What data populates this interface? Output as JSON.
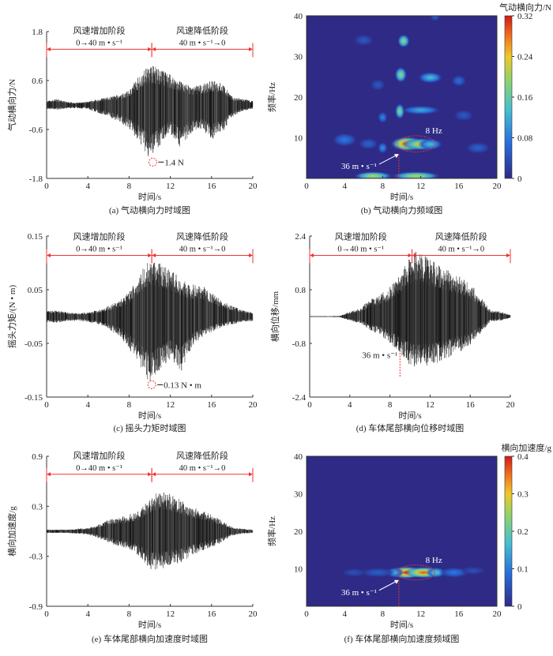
{
  "chart_data": [
    {
      "id": "a",
      "type": "line",
      "caption": "(a)   气动横向力时域图",
      "xlabel": "时间/s",
      "ylabel": "气动横向力/N",
      "xlim": [
        0,
        20
      ],
      "xticks": [
        "0",
        "4",
        "8",
        "12",
        "16",
        "20"
      ],
      "ylim": [
        -1.8,
        1.8
      ],
      "yticks": [
        "-1.8",
        "-0.6",
        "0.6",
        "1.8"
      ],
      "phases": [
        {
          "label": "风速增加阶段",
          "sub": "0→40 m • s⁻¹",
          "from": 0,
          "to": 10.2
        },
        {
          "label": "风速降低阶段",
          "sub": "40 m • s⁻¹→0",
          "from": 10.2,
          "to": 20
        }
      ],
      "annotation": {
        "text": "1.4 N",
        "t": 10.3,
        "y": -1.4,
        "style": "circle"
      },
      "envelope": {
        "t": [
          0,
          1,
          2,
          3,
          4,
          5,
          6,
          7,
          8,
          9,
          10,
          11,
          12,
          13,
          14,
          15,
          16,
          17,
          18,
          19,
          20
        ],
        "upper": [
          0.1,
          0.15,
          0.08,
          0.06,
          0.08,
          0.15,
          0.2,
          0.25,
          0.35,
          0.75,
          1.0,
          0.9,
          0.75,
          0.6,
          0.45,
          0.5,
          0.6,
          0.55,
          0.2,
          0.15,
          0.1
        ],
        "lower": [
          -0.1,
          -0.12,
          -0.08,
          -0.08,
          -0.1,
          -0.2,
          -0.3,
          -0.4,
          -0.6,
          -0.9,
          -1.35,
          -1.0,
          -0.7,
          -1.05,
          -0.7,
          -0.6,
          -0.85,
          -0.7,
          -0.3,
          -0.15,
          -0.1
        ]
      }
    },
    {
      "id": "b",
      "type": "heatmap",
      "caption": "(b)   气动横向力频域图",
      "xlabel": "时间/s",
      "ylabel": "频率/Hz",
      "xlim": [
        0,
        20
      ],
      "xticks": [
        "0",
        "4",
        "8",
        "12",
        "16",
        "20"
      ],
      "ylim": [
        0,
        40
      ],
      "yticks": [
        "10",
        "20",
        "30",
        "40"
      ],
      "colorbar": {
        "label": "气动横向力/N",
        "range": [
          0,
          0.32
        ],
        "ticks": [
          "0",
          "0.08",
          "0.16",
          "0.24",
          "0.32"
        ]
      },
      "annotations": [
        {
          "text": "8 Hz",
          "t": 11.5,
          "f": 8.5,
          "style": "ellipse"
        },
        {
          "text": "36 m • s⁻¹",
          "t": 9.7,
          "f": 6,
          "style": "arrow"
        }
      ],
      "peaks": [
        {
          "t": 10.6,
          "f": 8.5,
          "v": 0.32,
          "wt": 1.4,
          "wf": 1.3
        },
        {
          "t": 12.0,
          "f": 8.4,
          "v": 0.24,
          "wt": 1.6,
          "wf": 1.1
        },
        {
          "t": 13.0,
          "f": 8.4,
          "v": 0.14,
          "wt": 1.0,
          "wf": 1.0
        },
        {
          "t": 9.8,
          "f": 16.5,
          "v": 0.2,
          "wt": 0.4,
          "wf": 1.4
        },
        {
          "t": 12.0,
          "f": 16.8,
          "v": 0.12,
          "wt": 1.6,
          "wf": 0.8
        },
        {
          "t": 9.9,
          "f": 25.5,
          "v": 0.2,
          "wt": 0.5,
          "wf": 1.4
        },
        {
          "t": 13.0,
          "f": 24.8,
          "v": 0.14,
          "wt": 1.0,
          "wf": 1.0
        },
        {
          "t": 10.2,
          "f": 33.8,
          "v": 0.2,
          "wt": 0.5,
          "wf": 1.2
        },
        {
          "t": 7.0,
          "f": 0.6,
          "v": 0.22,
          "wt": 1.6,
          "wf": 0.8
        },
        {
          "t": 11.5,
          "f": 0.6,
          "v": 0.22,
          "wt": 2.0,
          "wf": 0.8
        },
        {
          "t": 8.0,
          "f": 7.5,
          "v": 0.1,
          "wt": 0.4,
          "wf": 1.0
        },
        {
          "t": 8.0,
          "f": 15.0,
          "v": 0.09,
          "wt": 0.4,
          "wf": 1.0
        },
        {
          "t": 4.0,
          "f": 9.5,
          "v": 0.08,
          "wt": 1.0,
          "wf": 1.2
        },
        {
          "t": 6.5,
          "f": 8.5,
          "v": 0.06,
          "wt": 0.8,
          "wf": 1.0
        },
        {
          "t": 16.0,
          "f": 24.0,
          "v": 0.07,
          "wt": 0.6,
          "wf": 1.0
        },
        {
          "t": 18.0,
          "f": 7.5,
          "v": 0.06,
          "wt": 1.0,
          "wf": 1.0
        },
        {
          "t": 16.5,
          "f": 15.5,
          "v": 0.05,
          "wt": 0.8,
          "wf": 1.0
        },
        {
          "t": 6.0,
          "f": 34.0,
          "v": 0.05,
          "wt": 0.8,
          "wf": 1.0
        },
        {
          "t": 7.5,
          "f": 23.0,
          "v": 0.05,
          "wt": 0.6,
          "wf": 1.0
        },
        {
          "t": 13.5,
          "f": 40.0,
          "v": 0.06,
          "wt": 0.4,
          "wf": 1.0
        }
      ]
    },
    {
      "id": "c",
      "type": "line",
      "caption": "(c)   摇头力矩时域图",
      "xlabel": "时间/s",
      "ylabel": "摇头力矩/(N • m)",
      "xlim": [
        0,
        20
      ],
      "xticks": [
        "0",
        "4",
        "8",
        "12",
        "16",
        "20"
      ],
      "ylim": [
        -0.15,
        0.15
      ],
      "yticks": [
        "-0.15",
        "-0.05",
        "0.05",
        "0.15"
      ],
      "phases": [
        {
          "label": "风速增加阶段",
          "sub": "0→40 m • s⁻¹",
          "from": 0,
          "to": 10.2
        },
        {
          "label": "风速降低阶段",
          "sub": "40 m • s⁻¹→0",
          "from": 10.2,
          "to": 20
        }
      ],
      "annotation": {
        "text": "0.13 N • m",
        "t": 10.2,
        "y": -0.127,
        "style": "circle"
      },
      "envelope": {
        "t": [
          0,
          1,
          2,
          3,
          4,
          5,
          6,
          7,
          8,
          9,
          10,
          11,
          12,
          13,
          14,
          15,
          16,
          17,
          18,
          19,
          20
        ],
        "upper": [
          0.01,
          0.012,
          0.008,
          0.006,
          0.008,
          0.012,
          0.02,
          0.03,
          0.045,
          0.08,
          0.11,
          0.1,
          0.09,
          0.07,
          0.06,
          0.06,
          0.045,
          0.03,
          0.02,
          0.012,
          0.008
        ],
        "lower": [
          -0.01,
          -0.012,
          -0.008,
          -0.008,
          -0.01,
          -0.015,
          -0.025,
          -0.035,
          -0.06,
          -0.09,
          -0.125,
          -0.1,
          -0.08,
          -0.105,
          -0.06,
          -0.04,
          -0.03,
          -0.02,
          -0.015,
          -0.01,
          -0.008
        ]
      }
    },
    {
      "id": "d",
      "type": "line",
      "caption": "(d)   车体尾部横向位移时域图",
      "xlabel": "时间/s",
      "ylabel": "横向位移/mm",
      "xlim": [
        0,
        20
      ],
      "xticks": [
        "0",
        "4",
        "8",
        "12",
        "16",
        "20"
      ],
      "ylim": [
        -2.4,
        2.4
      ],
      "yticks": [
        "-2.4",
        "-0.8",
        "0.8",
        "2.4"
      ],
      "phases": [
        {
          "label": "风速增加阶段",
          "sub": "0→40 m • s⁻¹",
          "from": 0,
          "to": 10.2
        },
        {
          "label": "风速降低阶段",
          "sub": "40 m • s⁻¹→0",
          "from": 10.2,
          "to": 20
        }
      ],
      "annotation": {
        "text": "36 m • s⁻¹",
        "t": 9.0,
        "y": -1.0,
        "style": "dashed"
      },
      "envelope": {
        "t": [
          0,
          1,
          2,
          3,
          4,
          5,
          6,
          7,
          8,
          9,
          10,
          10.5,
          11,
          12,
          13,
          14,
          15,
          16,
          17,
          18,
          19,
          20
        ],
        "upper": [
          0.01,
          0.01,
          0.01,
          0.02,
          0.15,
          0.25,
          0.5,
          0.65,
          0.9,
          1.3,
          1.75,
          1.95,
          1.9,
          1.7,
          1.5,
          1.35,
          1.2,
          1.0,
          0.6,
          0.2,
          0.15,
          0.05
        ],
        "lower": [
          -0.01,
          -0.01,
          -0.01,
          -0.02,
          -0.12,
          -0.2,
          -0.4,
          -0.55,
          -0.8,
          -1.1,
          -1.45,
          -1.5,
          -1.5,
          -1.45,
          -1.35,
          -1.2,
          -1.05,
          -0.9,
          -0.5,
          -0.15,
          -0.12,
          -0.05
        ]
      }
    },
    {
      "id": "e",
      "type": "line",
      "caption": "(e)   车体尾部横向加速度时域图",
      "xlabel": "时间/s",
      "ylabel": "横向加速度/g",
      "xlim": [
        0,
        20
      ],
      "xticks": [
        "0",
        "4",
        "8",
        "12",
        "16",
        "20"
      ],
      "ylim": [
        -0.9,
        0.9
      ],
      "yticks": [
        "-0.9",
        "-0.3",
        "0.3",
        "0.9"
      ],
      "phases": [
        {
          "label": "风速增加阶段",
          "sub": "0→40 m • s⁻¹",
          "from": 0,
          "to": 10.2
        },
        {
          "label": "风速降低阶段",
          "sub": "40 m • s⁻¹→0",
          "from": 10.2,
          "to": 20
        }
      ],
      "envelope": {
        "t": [
          0,
          1,
          2,
          3,
          4,
          5,
          6,
          7,
          8,
          9,
          10,
          11,
          12,
          13,
          14,
          15,
          16,
          17,
          18,
          19,
          20
        ],
        "upper": [
          0.02,
          0.02,
          0.02,
          0.03,
          0.04,
          0.08,
          0.14,
          0.17,
          0.2,
          0.25,
          0.4,
          0.5,
          0.45,
          0.38,
          0.3,
          0.26,
          0.2,
          0.13,
          0.05,
          0.03,
          0.02
        ],
        "lower": [
          -0.02,
          -0.02,
          -0.02,
          -0.03,
          -0.04,
          -0.08,
          -0.14,
          -0.18,
          -0.22,
          -0.3,
          -0.45,
          -0.47,
          -0.42,
          -0.38,
          -0.3,
          -0.24,
          -0.2,
          -0.13,
          -0.05,
          -0.03,
          -0.02
        ]
      }
    },
    {
      "id": "f",
      "type": "heatmap",
      "caption": "(f)   车体尾部横向加速度频域图",
      "xlabel": "时间/s",
      "ylabel": "频率/Hz",
      "xlim": [
        0,
        20
      ],
      "xticks": [
        "0",
        "4",
        "8",
        "12",
        "16",
        "20"
      ],
      "ylim": [
        0,
        40
      ],
      "yticks": [
        "10",
        "20",
        "30",
        "40"
      ],
      "colorbar": {
        "label": "横向加速度/g",
        "range": [
          0,
          0.4
        ],
        "ticks": [
          "0",
          "0.1",
          "0.2",
          "0.3",
          "0.4"
        ]
      },
      "annotations": [
        {
          "text": "8 Hz",
          "t": 11.5,
          "f": 9,
          "style": "ellipse"
        },
        {
          "text": "36 m • s⁻¹",
          "t": 9.7,
          "f": 7,
          "style": "arrow"
        }
      ],
      "peaks": [
        {
          "t": 10.5,
          "f": 9,
          "v": 0.4,
          "wt": 1.5,
          "wf": 1.2
        },
        {
          "t": 12.3,
          "f": 9,
          "v": 0.37,
          "wt": 1.6,
          "wf": 1.1
        },
        {
          "t": 13.6,
          "f": 9,
          "v": 0.2,
          "wt": 0.8,
          "wf": 1.0
        },
        {
          "t": 9.3,
          "f": 9,
          "v": 0.16,
          "wt": 0.7,
          "wf": 1.0
        },
        {
          "t": 7.5,
          "f": 9,
          "v": 0.07,
          "wt": 1.4,
          "wf": 0.9
        },
        {
          "t": 15.5,
          "f": 9,
          "v": 0.1,
          "wt": 1.2,
          "wf": 1.0
        },
        {
          "t": 5.0,
          "f": 9,
          "v": 0.05,
          "wt": 1.0,
          "wf": 0.8
        },
        {
          "t": 17.5,
          "f": 9.5,
          "v": 0.05,
          "wt": 1.0,
          "wf": 0.8
        }
      ]
    }
  ]
}
